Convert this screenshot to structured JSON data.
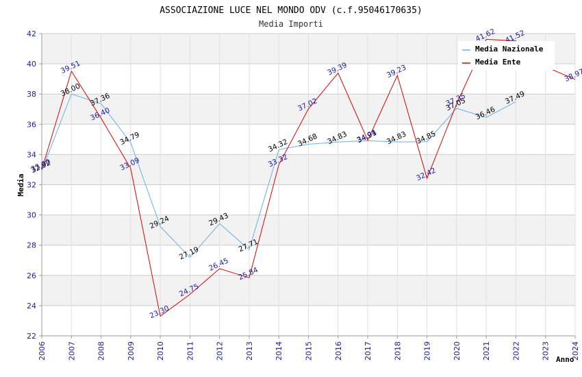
{
  "chart_data": {
    "type": "line",
    "title": "ASSOCIAZIONE LUCE NEL MONDO ODV (c.f.95046170635)",
    "subtitle": "Media Importi",
    "xlabel": "Anno",
    "ylabel": "Media",
    "ylim": [
      22,
      42
    ],
    "yticks": [
      22,
      24,
      26,
      28,
      30,
      32,
      34,
      36,
      38,
      40,
      42
    ],
    "x": [
      2006,
      2007,
      2008,
      2009,
      2010,
      2011,
      2012,
      2013,
      2014,
      2015,
      2016,
      2017,
      2018,
      2019,
      2020,
      2021,
      2022,
      2023,
      2024
    ],
    "xtick_labels": [
      "2006",
      "2007",
      "2008",
      "2009",
      "2010",
      "2011",
      "2012",
      "2013",
      "2014",
      "2015",
      "2016",
      "2017",
      "2018",
      "2019",
      "2020",
      "2021",
      "2022",
      "2023",
      "2024"
    ],
    "grid": true,
    "legend_position": "top-right",
    "series": [
      {
        "name": "Media Nazionale",
        "color": "#6aaee6",
        "x": [
          2006,
          2007,
          2008,
          2009,
          2010,
          2011,
          2012,
          2013,
          2014,
          2015,
          2016,
          2017,
          2018,
          2019,
          2020,
          2021,
          2022
        ],
        "values": [
          32.92,
          38.0,
          37.36,
          34.79,
          29.24,
          27.19,
          29.43,
          27.71,
          34.32,
          34.68,
          34.83,
          34.91,
          34.83,
          34.85,
          37.05,
          36.46,
          37.49
        ],
        "labels": [
          "32.92",
          "38.00",
          "37.36",
          "34.79",
          "29.24",
          "27.19",
          "29.43",
          "27.71",
          "34.32",
          "34.68",
          "34.83",
          "34.91",
          "34.83",
          "34.85",
          "37.05",
          "36.46",
          "37.49"
        ]
      },
      {
        "name": "Media Ente",
        "color": "#dd0000",
        "x": [
          2006,
          2007,
          2008,
          2009,
          2010,
          2011,
          2012,
          2013,
          2014,
          2015,
          2016,
          2017,
          2018,
          2019,
          2020,
          2021,
          2022,
          2023,
          2024
        ],
        "values": [
          33.0,
          39.51,
          36.4,
          33.09,
          23.3,
          24.75,
          26.45,
          25.84,
          33.32,
          37.02,
          39.39,
          34.94,
          39.23,
          32.42,
          37.35,
          41.62,
          41.52,
          39.8,
          38.97
        ],
        "labels": [
          "33.00",
          "39.51",
          "36.40",
          "33.09",
          "23.30",
          "24.75",
          "26.45",
          "25.84",
          "33.32",
          "37.02",
          "39.39",
          "34.94",
          "39.23",
          "32.42",
          "37.35",
          "41.62",
          "41.52",
          "",
          "38.97"
        ]
      }
    ]
  }
}
